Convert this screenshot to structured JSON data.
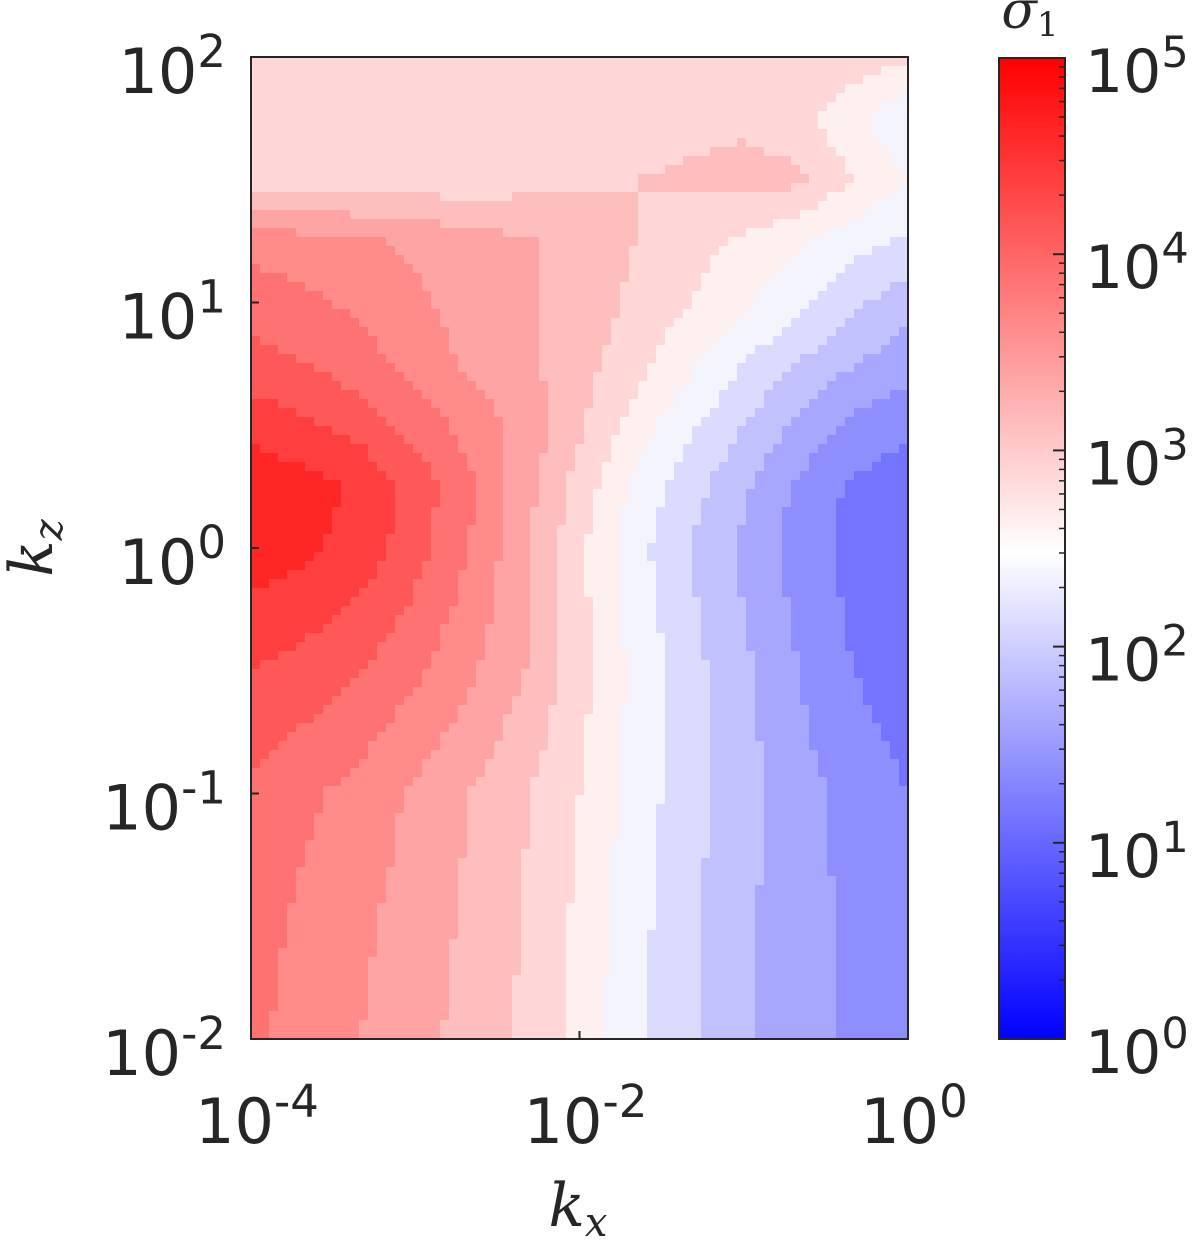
{
  "chart_data": {
    "type": "heatmap",
    "subtype": "filled-contour",
    "xlabel": "k_x",
    "ylabel": "k_z",
    "colorbar_label": "σ_1",
    "xscale": "log",
    "yscale": "log",
    "xlim": [
      0.0001,
      1
    ],
    "ylim": [
      0.01,
      100
    ],
    "x_ticks": [
      0.0001,
      0.01,
      1
    ],
    "x_tick_labels": [
      {
        "base": "10",
        "exp": "-4"
      },
      {
        "base": "10",
        "exp": "-2"
      },
      {
        "base": "10",
        "exp": "0"
      }
    ],
    "y_ticks": [
      0.01,
      0.1,
      1,
      10,
      100
    ],
    "y_tick_labels": [
      {
        "base": "10",
        "exp": "-2"
      },
      {
        "base": "10",
        "exp": "-1"
      },
      {
        "base": "10",
        "exp": "0"
      },
      {
        "base": "10",
        "exp": "1"
      },
      {
        "base": "10",
        "exp": "2"
      }
    ],
    "colorbar": {
      "scale": "log",
      "range": [
        1,
        100000
      ],
      "ticks": [
        1,
        10,
        100,
        1000,
        10000,
        100000
      ],
      "tick_labels": [
        {
          "base": "10",
          "exp": "0"
        },
        {
          "base": "10",
          "exp": "1"
        },
        {
          "base": "10",
          "exp": "2"
        },
        {
          "base": "10",
          "exp": "3"
        },
        {
          "base": "10",
          "exp": "4"
        },
        {
          "base": "10",
          "exp": "5"
        }
      ],
      "colormap": [
        "#0000ff",
        "#ffffff",
        "#ff0000"
      ],
      "center_value": 300
    },
    "grid": false,
    "x_log_grid": [
      -4,
      -3.67,
      -3.33,
      -3,
      -2.67,
      -2.33,
      -2,
      -1.67,
      -1.33,
      -1,
      -0.67,
      -0.33,
      0
    ],
    "y_log_grid": [
      -2,
      -1.5,
      -1,
      -0.5,
      0,
      0.25,
      0.5,
      0.75,
      1,
      1.25,
      1.5,
      1.75,
      2
    ],
    "z_log10": [
      [
        3.8,
        3.65,
        3.5,
        3.35,
        3.15,
        2.95,
        2.65,
        2.3,
        2.05,
        1.8,
        1.6,
        1.45,
        1.35
      ],
      [
        3.85,
        3.7,
        3.55,
        3.4,
        3.2,
        2.98,
        2.7,
        2.35,
        2.05,
        1.8,
        1.6,
        1.45,
        1.35
      ],
      [
        3.95,
        3.8,
        3.65,
        3.45,
        3.25,
        3.02,
        2.75,
        2.4,
        2.1,
        1.85,
        1.6,
        1.4,
        1.25
      ],
      [
        4.25,
        4.15,
        4.0,
        3.8,
        3.55,
        3.25,
        2.85,
        2.45,
        2.1,
        1.8,
        1.5,
        1.25,
        1.1
      ],
      [
        4.65,
        4.55,
        4.4,
        4.1,
        3.75,
        3.3,
        2.8,
        2.35,
        2.0,
        1.7,
        1.4,
        1.15,
        1.0
      ],
      [
        4.7,
        4.6,
        4.45,
        4.15,
        3.8,
        3.35,
        2.9,
        2.45,
        2.1,
        1.8,
        1.45,
        1.2,
        1.1
      ],
      [
        4.4,
        4.3,
        4.15,
        3.9,
        3.65,
        3.4,
        3.05,
        2.65,
        2.3,
        2.0,
        1.7,
        1.45,
        1.3
      ],
      [
        4.1,
        4.0,
        3.85,
        3.65,
        3.45,
        3.3,
        3.1,
        2.85,
        2.55,
        2.25,
        2.0,
        1.75,
        1.6
      ],
      [
        3.9,
        3.8,
        3.7,
        3.55,
        3.4,
        3.3,
        3.15,
        2.95,
        2.75,
        2.55,
        2.3,
        2.05,
        1.85
      ],
      [
        3.65,
        3.6,
        3.55,
        3.45,
        3.35,
        3.28,
        3.15,
        3.0,
        2.85,
        2.7,
        2.55,
        2.35,
        2.2
      ],
      [
        2.85,
        2.85,
        2.85,
        2.85,
        2.85,
        2.9,
        2.95,
        3.0,
        3.05,
        3.1,
        3.05,
        2.75,
        2.5
      ],
      [
        2.8,
        2.8,
        2.8,
        2.8,
        2.82,
        2.85,
        2.85,
        2.85,
        2.9,
        2.95,
        2.85,
        2.55,
        2.3
      ],
      [
        2.95,
        2.95,
        2.95,
        2.95,
        2.95,
        2.95,
        3.0,
        3.0,
        3.0,
        3.0,
        3.0,
        2.9,
        2.8
      ]
    ]
  },
  "colors": {
    "axis": "#262626",
    "red": "#ff0000",
    "white": "#ffffff",
    "blue": "#0000ff"
  }
}
